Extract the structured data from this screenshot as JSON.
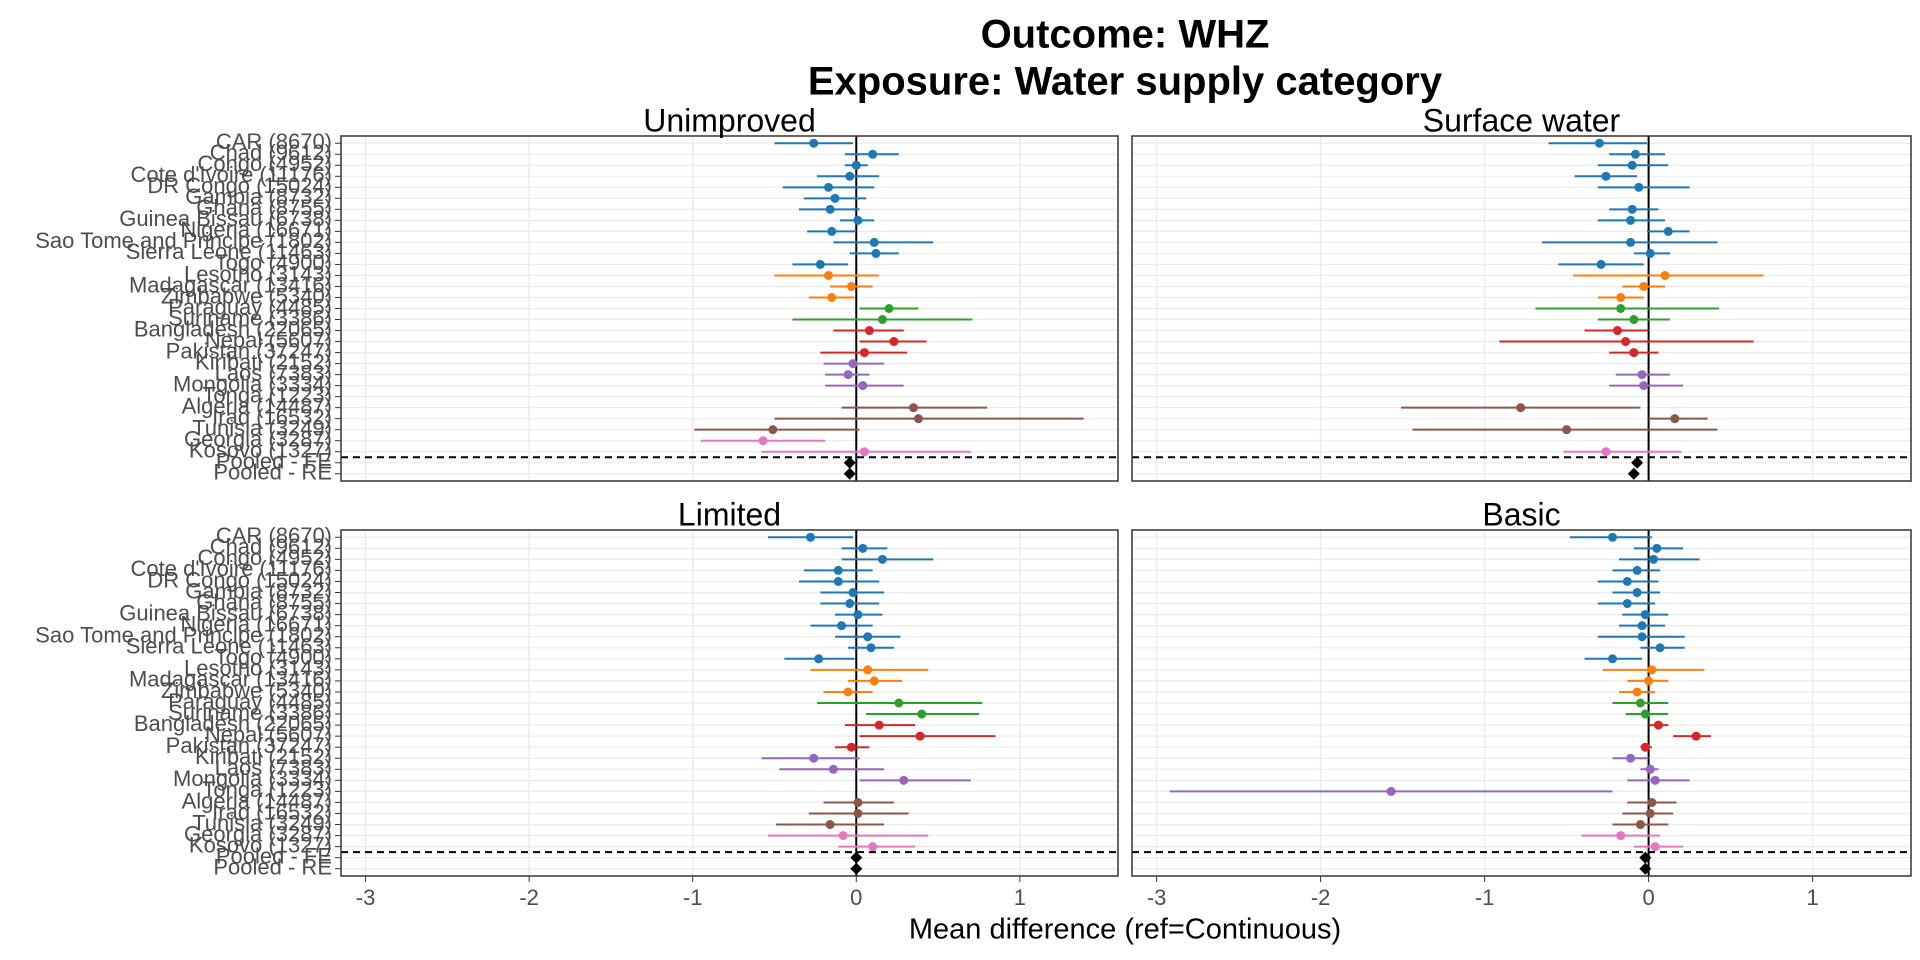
{
  "title": [
    "Outcome: WHZ",
    "Exposure: Water supply category"
  ],
  "xlabel": "Mean difference (ref=Continuous)",
  "chart_data": [
    {
      "type": "forest",
      "title": "Unimproved",
      "categories": [
        "CAR (8670)",
        "Chad (9612)",
        "Congo (4952)",
        "Cote d'Ivoire (11176)",
        "DR Congo (15024)",
        "Gambia (8732)",
        "Ghana (8755)",
        "Guinea Bissau (6738)",
        "Nigeria (16671)",
        "Sao Tome and Principe (1802)",
        "Sierra Leone (11463)",
        "Togo (4900)",
        "Lesotho (3143)",
        "Madagascar (13416)",
        "Zimbabwe (5340)",
        "Paraguay (4485)",
        "Suriname (3386)",
        "Bangladesh (22065)",
        "Nepal (5607)",
        "Pakistan (37247)",
        "Kiribati (2152)",
        "Laos (7383)",
        "Mongolia (3334)",
        "Tonga (1223)",
        "Algeria (14487)",
        "Iraq (16532)",
        "Tunisia (3249)",
        "Georgia (3287)",
        "Kosovo (1327)",
        "Pooled - FE",
        "Pooled - RE"
      ],
      "colors": [
        "#1f77b4",
        "#1f77b4",
        "#1f77b4",
        "#1f77b4",
        "#1f77b4",
        "#1f77b4",
        "#1f77b4",
        "#1f77b4",
        "#1f77b4",
        "#1f77b4",
        "#1f77b4",
        "#1f77b4",
        "#ff7f0e",
        "#ff7f0e",
        "#ff7f0e",
        "#2ca02c",
        "#2ca02c",
        "#d62728",
        "#d62728",
        "#d62728",
        "#9467bd",
        "#9467bd",
        "#9467bd",
        "#9467bd",
        "#8c564b",
        "#8c564b",
        "#8c564b",
        "#e377c2",
        "#e377c2",
        "#000000",
        "#000000"
      ],
      "markers": [
        "circle",
        "circle",
        "circle",
        "circle",
        "circle",
        "circle",
        "circle",
        "circle",
        "circle",
        "circle",
        "circle",
        "circle",
        "circle",
        "circle",
        "circle",
        "circle",
        "circle",
        "circle",
        "circle",
        "circle",
        "circle",
        "circle",
        "circle",
        "circle",
        "circle",
        "circle",
        "circle",
        "circle",
        "circle",
        "diamond",
        "diamond"
      ],
      "values": [
        -0.26,
        0.1,
        0.0,
        -0.04,
        -0.17,
        -0.13,
        -0.16,
        0.01,
        -0.15,
        0.11,
        0.12,
        -0.22,
        -0.17,
        -0.03,
        -0.15,
        0.2,
        0.16,
        0.08,
        0.23,
        0.05,
        -0.02,
        -0.05,
        0.04,
        null,
        0.35,
        0.38,
        -0.51,
        -0.57,
        0.05,
        -0.04,
        -0.04
      ],
      "lower": [
        -0.5,
        -0.07,
        -0.07,
        -0.24,
        -0.45,
        -0.32,
        -0.35,
        -0.1,
        -0.3,
        -0.14,
        -0.04,
        -0.39,
        -0.5,
        -0.16,
        -0.29,
        0.02,
        -0.39,
        -0.14,
        0.02,
        -0.22,
        -0.2,
        -0.19,
        -0.19,
        null,
        -0.09,
        -0.5,
        -0.99,
        -0.95,
        -0.58,
        -0.06,
        -0.07
      ],
      "upper": [
        -0.02,
        0.26,
        0.07,
        0.14,
        0.11,
        0.06,
        0.02,
        0.11,
        0.0,
        0.47,
        0.26,
        -0.05,
        0.14,
        0.1,
        -0.01,
        0.38,
        0.71,
        0.29,
        0.43,
        0.31,
        0.17,
        0.08,
        0.29,
        null,
        0.8,
        1.39,
        0.02,
        -0.19,
        0.7,
        -0.02,
        -0.01
      ],
      "xlim": [
        -3.15,
        1.6
      ],
      "xticks": [
        -3,
        -2,
        -1,
        0,
        1
      ],
      "vline": 0,
      "grid": true
    },
    {
      "type": "forest",
      "title": "Surface water",
      "colors": [
        "#1f77b4",
        "#1f77b4",
        "#1f77b4",
        "#1f77b4",
        "#1f77b4",
        "#1f77b4",
        "#1f77b4",
        "#1f77b4",
        "#1f77b4",
        "#1f77b4",
        "#1f77b4",
        "#1f77b4",
        "#ff7f0e",
        "#ff7f0e",
        "#ff7f0e",
        "#2ca02c",
        "#2ca02c",
        "#d62728",
        "#d62728",
        "#d62728",
        "#9467bd",
        "#9467bd",
        "#9467bd",
        "#9467bd",
        "#8c564b",
        "#8c564b",
        "#8c564b",
        "#e377c2",
        "#e377c2",
        "#000000",
        "#000000"
      ],
      "markers": [
        "circle",
        "circle",
        "circle",
        "circle",
        "circle",
        "circle",
        "circle",
        "circle",
        "circle",
        "circle",
        "circle",
        "circle",
        "circle",
        "circle",
        "circle",
        "circle",
        "circle",
        "circle",
        "circle",
        "circle",
        "circle",
        "circle",
        "circle",
        "circle",
        "circle",
        "circle",
        "circle",
        "circle",
        "circle",
        "diamond",
        "diamond"
      ],
      "values": [
        -0.3,
        -0.08,
        -0.1,
        -0.26,
        -0.06,
        null,
        -0.1,
        -0.11,
        0.12,
        -0.11,
        0.01,
        -0.29,
        0.1,
        -0.03,
        -0.17,
        -0.17,
        -0.09,
        -0.19,
        -0.14,
        -0.09,
        null,
        -0.04,
        -0.03,
        null,
        -0.78,
        0.16,
        -0.5,
        null,
        -0.26,
        -0.07,
        -0.09
      ],
      "lower": [
        -0.61,
        -0.24,
        -0.31,
        -0.45,
        -0.31,
        null,
        -0.24,
        -0.31,
        -0.01,
        -0.65,
        -0.09,
        -0.55,
        -0.46,
        -0.16,
        -0.31,
        -0.69,
        -0.31,
        -0.39,
        -0.91,
        -0.24,
        null,
        -0.2,
        -0.24,
        null,
        -1.51,
        0.0,
        -1.44,
        null,
        -0.52,
        -0.1,
        -0.12
      ],
      "upper": [
        -0.01,
        0.1,
        0.12,
        -0.07,
        0.25,
        null,
        0.06,
        0.1,
        0.25,
        0.42,
        0.13,
        -0.03,
        0.7,
        0.1,
        -0.03,
        0.43,
        0.13,
        0.0,
        0.64,
        0.06,
        null,
        0.13,
        0.21,
        null,
        -0.05,
        0.36,
        0.42,
        null,
        0.2,
        -0.04,
        -0.06
      ],
      "xlim": [
        -3.15,
        1.6
      ],
      "xticks": [
        -3,
        -2,
        -1,
        0,
        1
      ],
      "vline": 0,
      "grid": true
    },
    {
      "type": "forest",
      "title": "Limited",
      "categories": [
        "CAR (8670)",
        "Chad (9612)",
        "Congo (4952)",
        "Cote d'Ivoire (11176)",
        "DR Congo (15024)",
        "Gambia (8732)",
        "Ghana (8755)",
        "Guinea Bissau (6738)",
        "Nigeria (16671)",
        "Sao Tome and Principe (1802)",
        "Sierra Leone (11463)",
        "Togo (4900)",
        "Lesotho (3143)",
        "Madagascar (13416)",
        "Zimbabwe (5340)",
        "Paraguay (4485)",
        "Suriname (3386)",
        "Bangladesh (22065)",
        "Nepal (5607)",
        "Pakistan (37247)",
        "Kiribati (2152)",
        "Laos (7383)",
        "Mongolia (3334)",
        "Tonga (1223)",
        "Algeria (14487)",
        "Iraq (16532)",
        "Tunisia (3249)",
        "Georgia (3287)",
        "Kosovo (1327)",
        "Pooled - FE",
        "Pooled - RE"
      ],
      "colors": [
        "#1f77b4",
        "#1f77b4",
        "#1f77b4",
        "#1f77b4",
        "#1f77b4",
        "#1f77b4",
        "#1f77b4",
        "#1f77b4",
        "#1f77b4",
        "#1f77b4",
        "#1f77b4",
        "#1f77b4",
        "#ff7f0e",
        "#ff7f0e",
        "#ff7f0e",
        "#2ca02c",
        "#2ca02c",
        "#d62728",
        "#d62728",
        "#d62728",
        "#9467bd",
        "#9467bd",
        "#9467bd",
        "#9467bd",
        "#8c564b",
        "#8c564b",
        "#8c564b",
        "#e377c2",
        "#e377c2",
        "#000000",
        "#000000"
      ],
      "markers": [
        "circle",
        "circle",
        "circle",
        "circle",
        "circle",
        "circle",
        "circle",
        "circle",
        "circle",
        "circle",
        "circle",
        "circle",
        "circle",
        "circle",
        "circle",
        "circle",
        "circle",
        "circle",
        "circle",
        "circle",
        "circle",
        "circle",
        "circle",
        "circle",
        "circle",
        "circle",
        "circle",
        "circle",
        "circle",
        "diamond",
        "diamond"
      ],
      "values": [
        -0.28,
        0.04,
        0.16,
        -0.11,
        -0.11,
        -0.02,
        -0.04,
        0.01,
        -0.09,
        0.07,
        0.09,
        -0.23,
        0.07,
        0.11,
        -0.05,
        0.26,
        0.4,
        0.14,
        0.39,
        -0.03,
        -0.26,
        -0.14,
        0.29,
        null,
        0.01,
        0.01,
        -0.16,
        -0.08,
        0.1,
        0.0,
        0.0
      ],
      "lower": [
        -0.54,
        -0.09,
        -0.09,
        -0.32,
        -0.35,
        -0.22,
        -0.22,
        -0.13,
        -0.28,
        -0.13,
        -0.05,
        -0.44,
        -0.28,
        -0.05,
        -0.2,
        -0.24,
        0.06,
        -0.07,
        0.02,
        -0.13,
        -0.58,
        -0.47,
        0.02,
        null,
        -0.2,
        -0.29,
        -0.49,
        -0.54,
        -0.11,
        -0.02,
        -0.03
      ],
      "upper": [
        -0.02,
        0.19,
        0.47,
        0.1,
        0.14,
        0.17,
        0.14,
        0.16,
        0.1,
        0.27,
        0.23,
        -0.01,
        0.44,
        0.28,
        0.1,
        0.77,
        0.75,
        0.36,
        0.85,
        0.08,
        0.02,
        0.17,
        0.7,
        null,
        0.23,
        0.32,
        0.17,
        0.44,
        0.36,
        0.02,
        0.03
      ],
      "xlim": [
        -3.15,
        1.6
      ],
      "xticks": [
        -3,
        -2,
        -1,
        0,
        1
      ],
      "vline": 0,
      "grid": true
    },
    {
      "type": "forest",
      "title": "Basic",
      "colors": [
        "#1f77b4",
        "#1f77b4",
        "#1f77b4",
        "#1f77b4",
        "#1f77b4",
        "#1f77b4",
        "#1f77b4",
        "#1f77b4",
        "#1f77b4",
        "#1f77b4",
        "#1f77b4",
        "#1f77b4",
        "#ff7f0e",
        "#ff7f0e",
        "#ff7f0e",
        "#2ca02c",
        "#2ca02c",
        "#d62728",
        "#d62728",
        "#d62728",
        "#9467bd",
        "#9467bd",
        "#9467bd",
        "#9467bd",
        "#8c564b",
        "#8c564b",
        "#8c564b",
        "#e377c2",
        "#e377c2",
        "#000000",
        "#000000"
      ],
      "markers": [
        "circle",
        "circle",
        "circle",
        "circle",
        "circle",
        "circle",
        "circle",
        "circle",
        "circle",
        "circle",
        "circle",
        "circle",
        "circle",
        "circle",
        "circle",
        "circle",
        "circle",
        "circle",
        "circle",
        "circle",
        "circle",
        "circle",
        "circle",
        "circle",
        "circle",
        "circle",
        "circle",
        "circle",
        "circle",
        "diamond",
        "diamond"
      ],
      "values": [
        -0.22,
        0.05,
        0.03,
        -0.07,
        -0.13,
        -0.07,
        -0.13,
        -0.02,
        -0.04,
        -0.04,
        0.07,
        -0.22,
        0.02,
        0.0,
        -0.07,
        -0.05,
        -0.02,
        0.06,
        0.29,
        -0.02,
        -0.11,
        0.01,
        0.04,
        -1.57,
        0.02,
        0.01,
        -0.05,
        -0.17,
        0.04,
        -0.02,
        -0.02
      ],
      "lower": [
        -0.48,
        -0.09,
        -0.18,
        -0.22,
        -0.31,
        -0.22,
        -0.31,
        -0.16,
        -0.18,
        -0.31,
        -0.05,
        -0.39,
        -0.28,
        -0.13,
        -0.18,
        -0.22,
        -0.14,
        0.0,
        0.15,
        -0.05,
        -0.22,
        -0.05,
        -0.13,
        -2.92,
        -0.13,
        -0.16,
        -0.22,
        -0.41,
        -0.09,
        -0.03,
        -0.04
      ],
      "upper": [
        0.02,
        0.21,
        0.31,
        0.07,
        0.06,
        0.07,
        0.04,
        0.12,
        0.1,
        0.22,
        0.22,
        -0.04,
        0.34,
        0.12,
        0.04,
        0.12,
        0.12,
        0.12,
        0.38,
        0.02,
        0.0,
        0.06,
        0.25,
        -0.22,
        0.17,
        0.15,
        0.12,
        0.07,
        0.21,
        0.0,
        0.01
      ],
      "xlim": [
        -3.15,
        1.6
      ],
      "xticks": [
        -3,
        -2,
        -1,
        0,
        1
      ],
      "vline": 0,
      "grid": true
    }
  ]
}
